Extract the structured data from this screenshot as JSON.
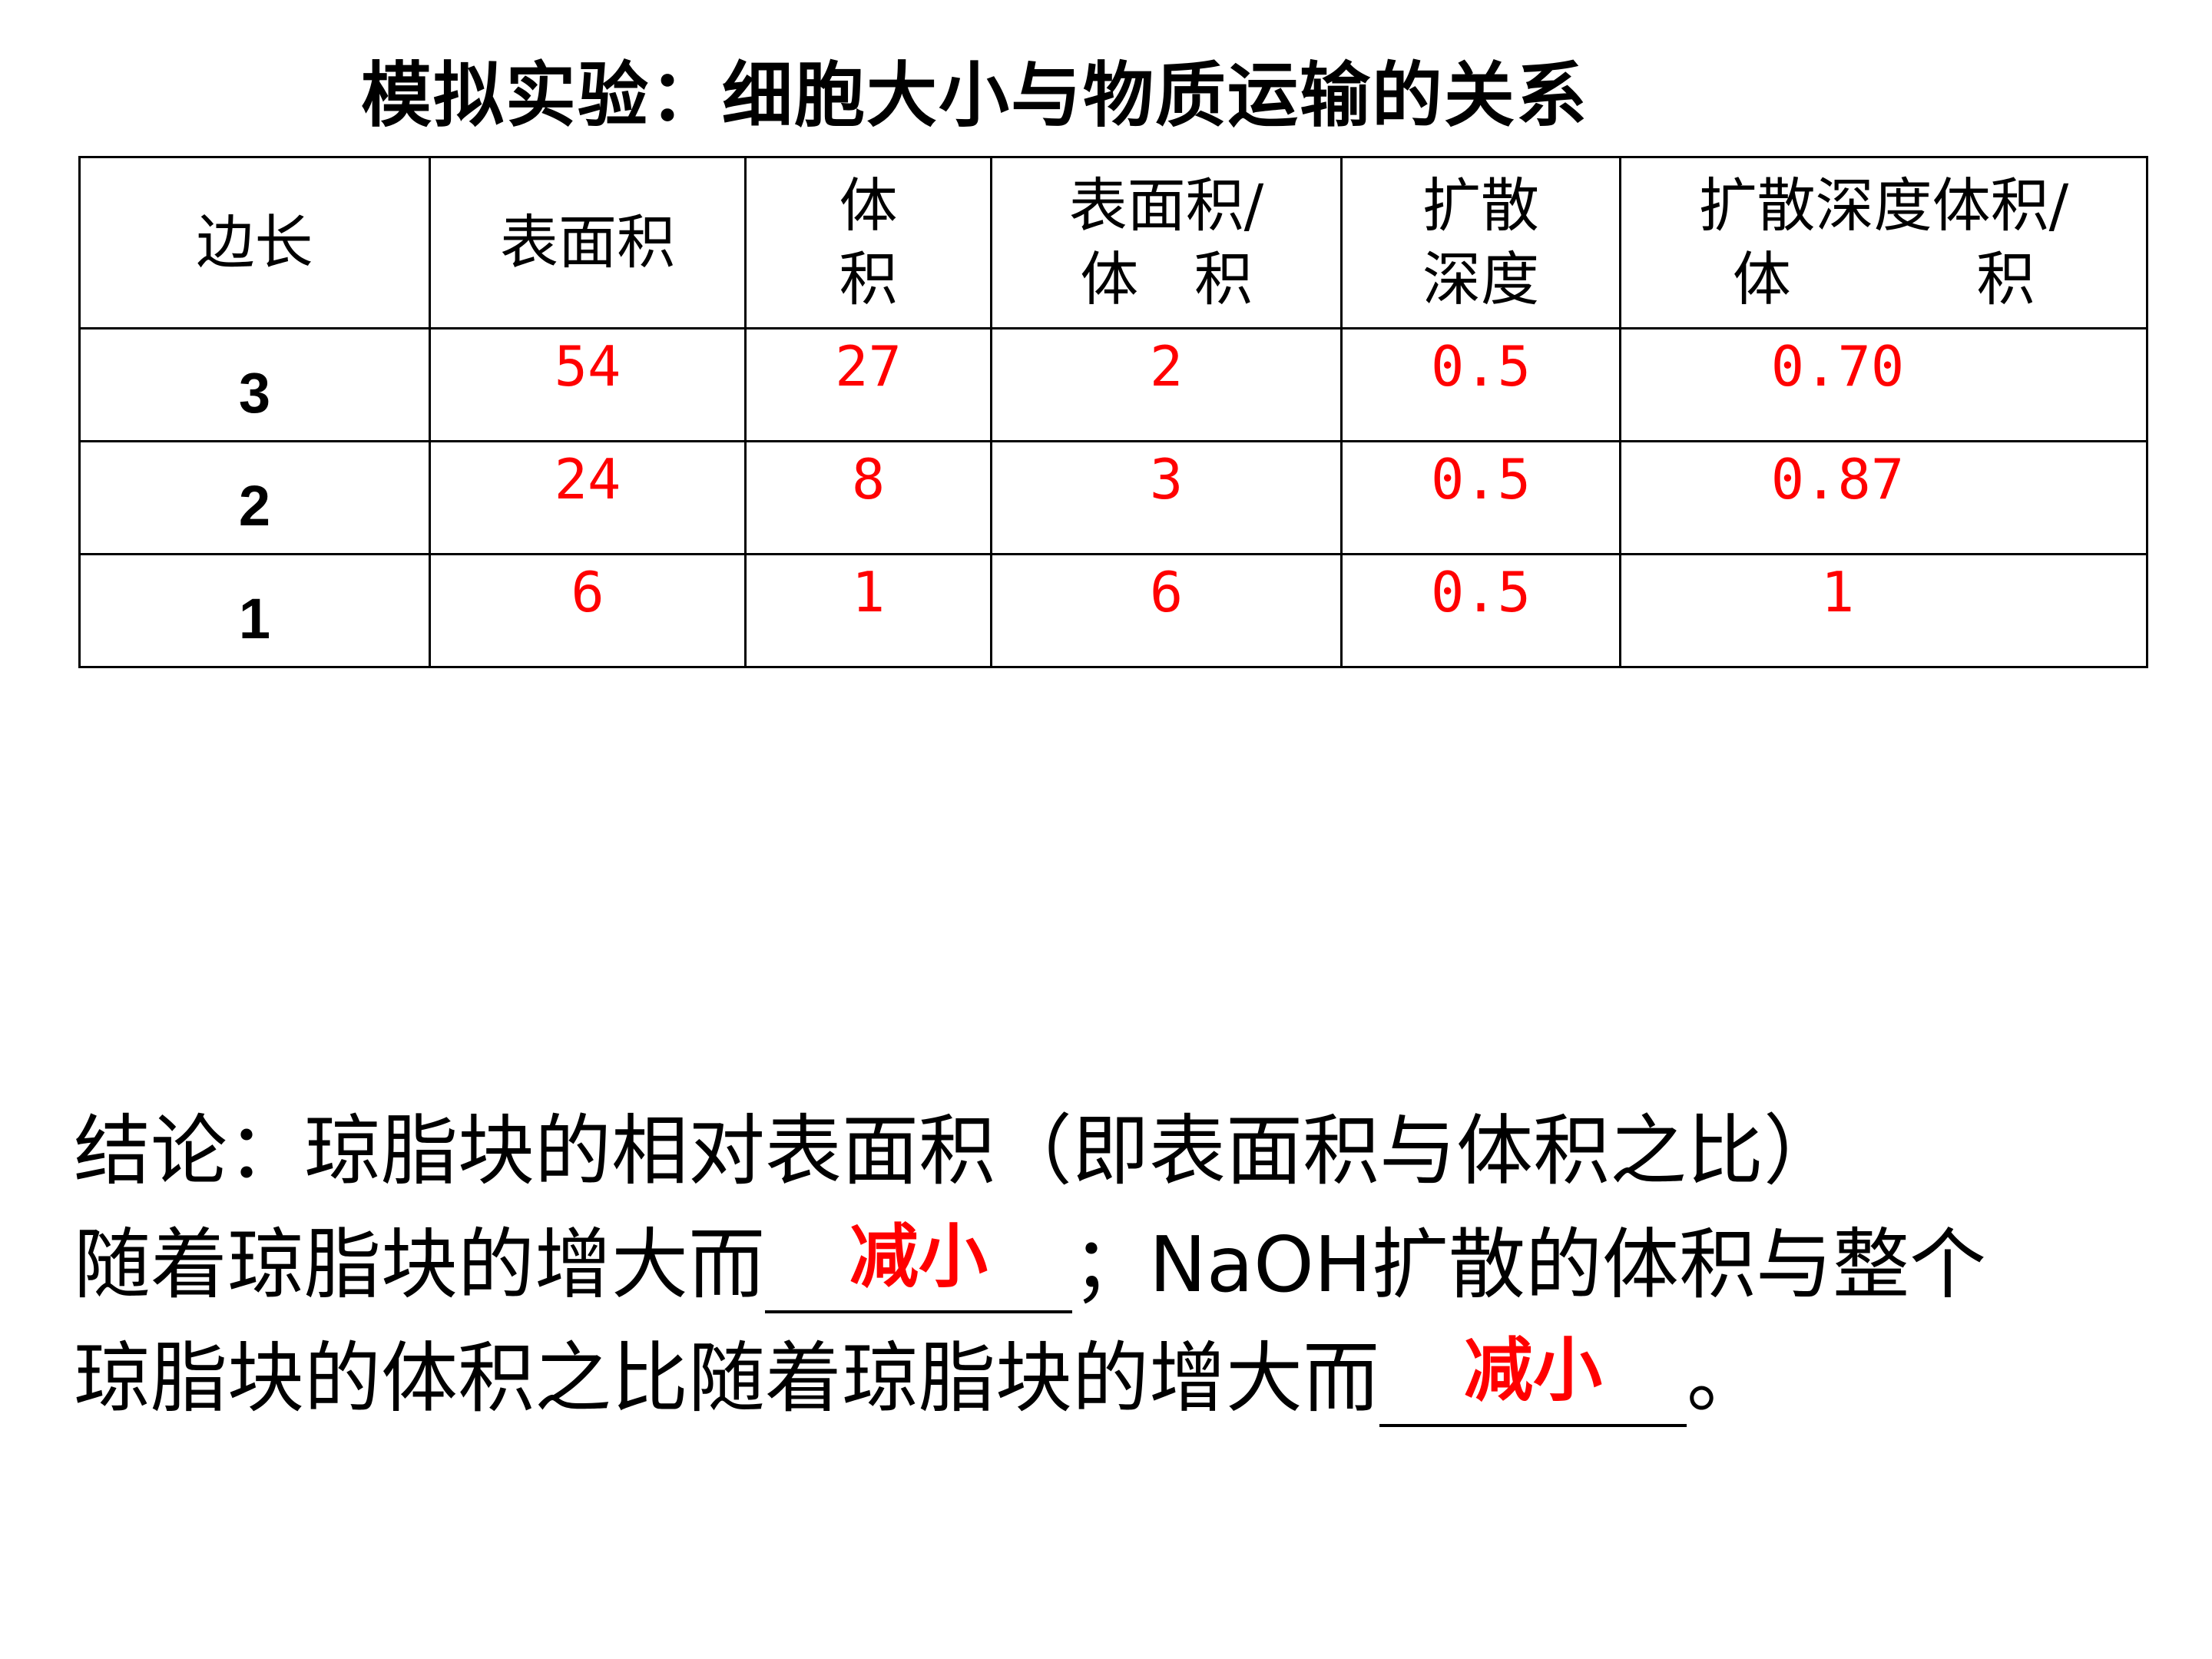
{
  "title": "模拟实验：细胞大小与物质运输的关系",
  "table": {
    "headers": [
      "边长",
      "表面积",
      "体\n积",
      "表面积/\n体   积",
      "扩散\n深度",
      "扩散深度体积/\n体          积"
    ],
    "rows": [
      [
        "3",
        "54",
        "27",
        "2",
        "0.5",
        "0.70"
      ],
      [
        "2",
        "24",
        "8",
        "3",
        "0.5",
        "0.87"
      ],
      [
        "1",
        "6",
        "1",
        "6",
        "0.5",
        "1"
      ]
    ]
  },
  "conclusion": {
    "line1": "结论：琼脂块的相对表面积（即表面积与体积之比）",
    "line2_pre": "随着琼脂块的增大而",
    "answer1": "减小",
    "line2_post": "；NaOH扩散的体积与整个",
    "line3_pre": "琼脂块的体积之比随着琼脂块的增大而",
    "answer2": "减小",
    "line3_post": "。"
  },
  "colors": {
    "answer": "#ff0000",
    "text": "#000000"
  }
}
